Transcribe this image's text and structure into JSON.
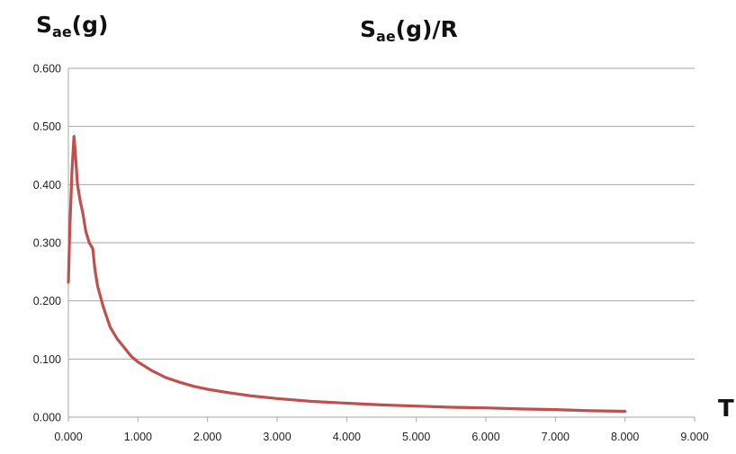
{
  "chart_data": {
    "type": "line",
    "title": "Sae(g)/R",
    "title_main": "S",
    "title_sub": "ae",
    "title_rest": "(g)/R",
    "ylabel": "Sae(g)",
    "ylabel_main": "S",
    "ylabel_sub": "ae",
    "ylabel_rest": "(g)",
    "xlabel": "T",
    "xlim": [
      0,
      9
    ],
    "ylim": [
      0,
      0.6
    ],
    "x_ticks": [
      "0.000",
      "1.000",
      "2.000",
      "3.000",
      "4.000",
      "5.000",
      "6.000",
      "7.000",
      "8.000",
      "9.000"
    ],
    "y_ticks": [
      "0.000",
      "0.100",
      "0.200",
      "0.300",
      "0.400",
      "0.500",
      "0.600"
    ],
    "grid": "horizontal",
    "legend": "none",
    "line_color": "#c0504d",
    "series": [
      {
        "x": [
          0.0,
          0.02,
          0.05,
          0.08,
          0.1,
          0.13,
          0.17,
          0.21,
          0.25,
          0.3,
          0.35,
          0.38,
          0.42,
          0.5,
          0.6,
          0.7,
          0.8,
          0.9,
          1.0,
          1.2,
          1.4,
          1.6,
          1.8,
          2.0,
          2.3,
          2.6,
          3.0,
          3.5,
          4.0,
          4.5,
          5.0,
          5.5,
          6.0,
          6.5,
          7.0,
          7.5,
          8.0
        ],
        "y": [
          0.232,
          0.32,
          0.42,
          0.483,
          0.455,
          0.4,
          0.372,
          0.35,
          0.32,
          0.3,
          0.29,
          0.255,
          0.225,
          0.19,
          0.155,
          0.135,
          0.12,
          0.105,
          0.095,
          0.08,
          0.068,
          0.06,
          0.053,
          0.048,
          0.042,
          0.037,
          0.032,
          0.027,
          0.024,
          0.021,
          0.019,
          0.017,
          0.016,
          0.014,
          0.013,
          0.011,
          0.01
        ]
      }
    ]
  }
}
